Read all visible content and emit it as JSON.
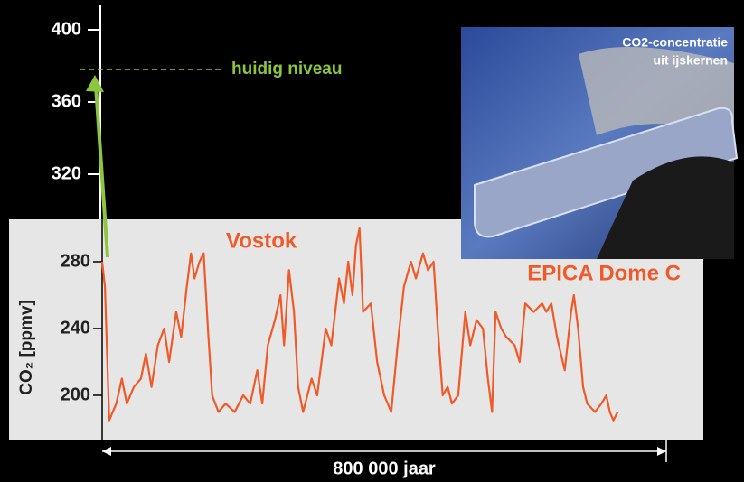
{
  "chart_data": [
    {
      "type": "axis",
      "ylim": [
        295,
        414
      ],
      "yticks": [
        320,
        360,
        400
      ],
      "reference_line": {
        "value": 378,
        "label": "huidig niveau",
        "color": "#8cc63f"
      }
    },
    {
      "type": "line",
      "ylabel": "CO₂  [ppmv]",
      "annotations": [
        "Vostok",
        "EPICA Dome C"
      ],
      "span_label": "800 000 jaar",
      "xlim": [
        0,
        800000
      ],
      "ylim": [
        173.5,
        305.4
      ],
      "yticks": [
        200,
        240,
        280
      ],
      "color": "#f05a28",
      "x": [
        0,
        4000,
        10000,
        20000,
        28000,
        35000,
        45000,
        55000,
        62000,
        70000,
        79000,
        88000,
        95000,
        105000,
        112000,
        120000,
        126000,
        131000,
        138000,
        144000,
        150000,
        156000,
        165000,
        175000,
        188000,
        200000,
        210000,
        220000,
        227000,
        235000,
        245000,
        253000,
        258000,
        265000,
        272000,
        278000,
        285000,
        297000,
        305000,
        317000,
        325000,
        336000,
        343000,
        349000,
        355000,
        360000,
        365000,
        370000,
        381000,
        390000,
        400000,
        410000,
        419000,
        428000,
        438000,
        445000,
        455000,
        462000,
        470000,
        476000,
        483000,
        490000,
        496000,
        505000,
        515000,
        522000,
        531000,
        540000,
        547000,
        553000,
        558000,
        566000,
        573000,
        585000,
        592000,
        600000,
        612000,
        624000,
        630000,
        637000,
        645000,
        656000,
        665000,
        669000,
        675000,
        682000,
        688000,
        699000,
        708000,
        715000,
        720000,
        725000,
        731000
      ],
      "values": [
        280,
        265,
        185,
        195,
        210,
        195,
        205,
        210,
        225,
        205,
        230,
        240,
        220,
        250,
        235,
        265,
        285,
        270,
        280,
        285,
        240,
        200,
        190,
        195,
        190,
        200,
        195,
        215,
        195,
        230,
        245,
        260,
        230,
        275,
        250,
        205,
        190,
        210,
        200,
        240,
        230,
        270,
        255,
        280,
        260,
        290,
        300,
        250,
        255,
        220,
        200,
        190,
        230,
        265,
        280,
        270,
        285,
        275,
        280,
        240,
        200,
        205,
        195,
        200,
        250,
        230,
        245,
        240,
        210,
        190,
        250,
        240,
        235,
        230,
        220,
        255,
        250,
        255,
        250,
        255,
        235,
        215,
        250,
        260,
        240,
        205,
        195,
        190,
        195,
        200,
        190,
        185,
        190
      ]
    }
  ],
  "photo": {
    "caption": [
      "CO2-concentratie",
      "uit ijskernen"
    ]
  }
}
